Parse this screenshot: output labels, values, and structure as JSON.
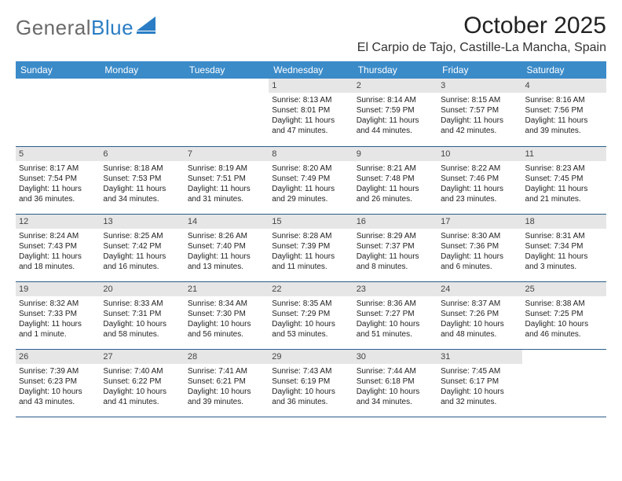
{
  "brand": {
    "part1": "General",
    "part2": "Blue"
  },
  "title": "October 2025",
  "location": "El Carpio de Tajo, Castille-La Mancha, Spain",
  "colors": {
    "header_bg": "#3b8bc9",
    "header_text": "#ffffff",
    "daynum_bg": "#e6e6e6",
    "row_border": "#2a5d8c",
    "brand_gray": "#6a6a6a",
    "brand_blue": "#2a7dc4"
  },
  "day_headers": [
    "Sunday",
    "Monday",
    "Tuesday",
    "Wednesday",
    "Thursday",
    "Friday",
    "Saturday"
  ],
  "weeks": [
    [
      {
        "empty": true
      },
      {
        "empty": true
      },
      {
        "empty": true
      },
      {
        "d": "1",
        "sr": "Sunrise: 8:13 AM",
        "ss": "Sunset: 8:01 PM",
        "dl1": "Daylight: 11 hours",
        "dl2": "and 47 minutes."
      },
      {
        "d": "2",
        "sr": "Sunrise: 8:14 AM",
        "ss": "Sunset: 7:59 PM",
        "dl1": "Daylight: 11 hours",
        "dl2": "and 44 minutes."
      },
      {
        "d": "3",
        "sr": "Sunrise: 8:15 AM",
        "ss": "Sunset: 7:57 PM",
        "dl1": "Daylight: 11 hours",
        "dl2": "and 42 minutes."
      },
      {
        "d": "4",
        "sr": "Sunrise: 8:16 AM",
        "ss": "Sunset: 7:56 PM",
        "dl1": "Daylight: 11 hours",
        "dl2": "and 39 minutes."
      }
    ],
    [
      {
        "d": "5",
        "sr": "Sunrise: 8:17 AM",
        "ss": "Sunset: 7:54 PM",
        "dl1": "Daylight: 11 hours",
        "dl2": "and 36 minutes."
      },
      {
        "d": "6",
        "sr": "Sunrise: 8:18 AM",
        "ss": "Sunset: 7:53 PM",
        "dl1": "Daylight: 11 hours",
        "dl2": "and 34 minutes."
      },
      {
        "d": "7",
        "sr": "Sunrise: 8:19 AM",
        "ss": "Sunset: 7:51 PM",
        "dl1": "Daylight: 11 hours",
        "dl2": "and 31 minutes."
      },
      {
        "d": "8",
        "sr": "Sunrise: 8:20 AM",
        "ss": "Sunset: 7:49 PM",
        "dl1": "Daylight: 11 hours",
        "dl2": "and 29 minutes."
      },
      {
        "d": "9",
        "sr": "Sunrise: 8:21 AM",
        "ss": "Sunset: 7:48 PM",
        "dl1": "Daylight: 11 hours",
        "dl2": "and 26 minutes."
      },
      {
        "d": "10",
        "sr": "Sunrise: 8:22 AM",
        "ss": "Sunset: 7:46 PM",
        "dl1": "Daylight: 11 hours",
        "dl2": "and 23 minutes."
      },
      {
        "d": "11",
        "sr": "Sunrise: 8:23 AM",
        "ss": "Sunset: 7:45 PM",
        "dl1": "Daylight: 11 hours",
        "dl2": "and 21 minutes."
      }
    ],
    [
      {
        "d": "12",
        "sr": "Sunrise: 8:24 AM",
        "ss": "Sunset: 7:43 PM",
        "dl1": "Daylight: 11 hours",
        "dl2": "and 18 minutes."
      },
      {
        "d": "13",
        "sr": "Sunrise: 8:25 AM",
        "ss": "Sunset: 7:42 PM",
        "dl1": "Daylight: 11 hours",
        "dl2": "and 16 minutes."
      },
      {
        "d": "14",
        "sr": "Sunrise: 8:26 AM",
        "ss": "Sunset: 7:40 PM",
        "dl1": "Daylight: 11 hours",
        "dl2": "and 13 minutes."
      },
      {
        "d": "15",
        "sr": "Sunrise: 8:28 AM",
        "ss": "Sunset: 7:39 PM",
        "dl1": "Daylight: 11 hours",
        "dl2": "and 11 minutes."
      },
      {
        "d": "16",
        "sr": "Sunrise: 8:29 AM",
        "ss": "Sunset: 7:37 PM",
        "dl1": "Daylight: 11 hours",
        "dl2": "and 8 minutes."
      },
      {
        "d": "17",
        "sr": "Sunrise: 8:30 AM",
        "ss": "Sunset: 7:36 PM",
        "dl1": "Daylight: 11 hours",
        "dl2": "and 6 minutes."
      },
      {
        "d": "18",
        "sr": "Sunrise: 8:31 AM",
        "ss": "Sunset: 7:34 PM",
        "dl1": "Daylight: 11 hours",
        "dl2": "and 3 minutes."
      }
    ],
    [
      {
        "d": "19",
        "sr": "Sunrise: 8:32 AM",
        "ss": "Sunset: 7:33 PM",
        "dl1": "Daylight: 11 hours",
        "dl2": "and 1 minute."
      },
      {
        "d": "20",
        "sr": "Sunrise: 8:33 AM",
        "ss": "Sunset: 7:31 PM",
        "dl1": "Daylight: 10 hours",
        "dl2": "and 58 minutes."
      },
      {
        "d": "21",
        "sr": "Sunrise: 8:34 AM",
        "ss": "Sunset: 7:30 PM",
        "dl1": "Daylight: 10 hours",
        "dl2": "and 56 minutes."
      },
      {
        "d": "22",
        "sr": "Sunrise: 8:35 AM",
        "ss": "Sunset: 7:29 PM",
        "dl1": "Daylight: 10 hours",
        "dl2": "and 53 minutes."
      },
      {
        "d": "23",
        "sr": "Sunrise: 8:36 AM",
        "ss": "Sunset: 7:27 PM",
        "dl1": "Daylight: 10 hours",
        "dl2": "and 51 minutes."
      },
      {
        "d": "24",
        "sr": "Sunrise: 8:37 AM",
        "ss": "Sunset: 7:26 PM",
        "dl1": "Daylight: 10 hours",
        "dl2": "and 48 minutes."
      },
      {
        "d": "25",
        "sr": "Sunrise: 8:38 AM",
        "ss": "Sunset: 7:25 PM",
        "dl1": "Daylight: 10 hours",
        "dl2": "and 46 minutes."
      }
    ],
    [
      {
        "d": "26",
        "sr": "Sunrise: 7:39 AM",
        "ss": "Sunset: 6:23 PM",
        "dl1": "Daylight: 10 hours",
        "dl2": "and 43 minutes."
      },
      {
        "d": "27",
        "sr": "Sunrise: 7:40 AM",
        "ss": "Sunset: 6:22 PM",
        "dl1": "Daylight: 10 hours",
        "dl2": "and 41 minutes."
      },
      {
        "d": "28",
        "sr": "Sunrise: 7:41 AM",
        "ss": "Sunset: 6:21 PM",
        "dl1": "Daylight: 10 hours",
        "dl2": "and 39 minutes."
      },
      {
        "d": "29",
        "sr": "Sunrise: 7:43 AM",
        "ss": "Sunset: 6:19 PM",
        "dl1": "Daylight: 10 hours",
        "dl2": "and 36 minutes."
      },
      {
        "d": "30",
        "sr": "Sunrise: 7:44 AM",
        "ss": "Sunset: 6:18 PM",
        "dl1": "Daylight: 10 hours",
        "dl2": "and 34 minutes."
      },
      {
        "d": "31",
        "sr": "Sunrise: 7:45 AM",
        "ss": "Sunset: 6:17 PM",
        "dl1": "Daylight: 10 hours",
        "dl2": "and 32 minutes."
      },
      {
        "empty": true
      }
    ]
  ]
}
